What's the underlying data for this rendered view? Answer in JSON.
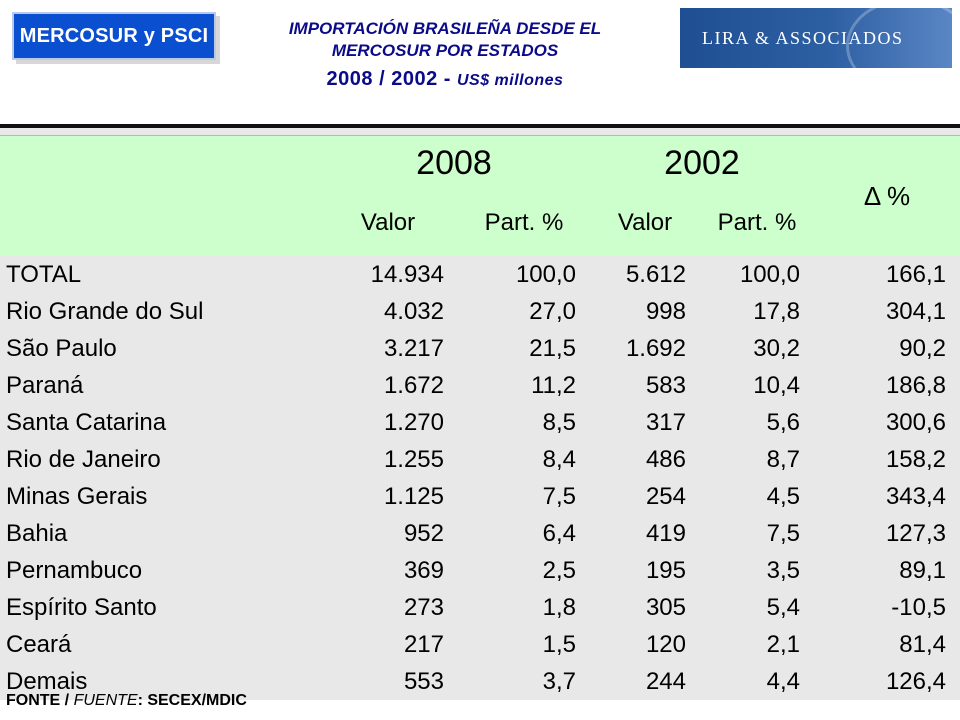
{
  "logo_left": {
    "text": "MERCOSUR y PSCI"
  },
  "logo_right": {
    "text": "LIRA & ASSOCIADOS"
  },
  "title": {
    "line1": "IMPORTACIÓN BRASILEÑA DESDE EL",
    "line2": "MERCOSUR POR ESTADOS",
    "years": "2008 / 2002 -",
    "unit": "US$ millones"
  },
  "table": {
    "year_a": "2008",
    "year_b": "2002",
    "delta": "Δ %",
    "col_valor": "Valor",
    "col_part": "Part. %",
    "rows": [
      {
        "state": "TOTAL",
        "v2008": "14.934",
        "p2008": "100,0",
        "v2002": "5.612",
        "p2002": "100,0",
        "delta": "166,1"
      },
      {
        "state": "Rio Grande do Sul",
        "v2008": "4.032",
        "p2008": "27,0",
        "v2002": "998",
        "p2002": "17,8",
        "delta": "304,1"
      },
      {
        "state": "São Paulo",
        "v2008": "3.217",
        "p2008": "21,5",
        "v2002": "1.692",
        "p2002": "30,2",
        "delta": "90,2"
      },
      {
        "state": "Paraná",
        "v2008": "1.672",
        "p2008": "11,2",
        "v2002": "583",
        "p2002": "10,4",
        "delta": "186,8"
      },
      {
        "state": "Santa Catarina",
        "v2008": "1.270",
        "p2008": "8,5",
        "v2002": "317",
        "p2002": "5,6",
        "delta": "300,6"
      },
      {
        "state": "Rio de Janeiro",
        "v2008": "1.255",
        "p2008": "8,4",
        "v2002": "486",
        "p2002": "8,7",
        "delta": "158,2"
      },
      {
        "state": "Minas Gerais",
        "v2008": "1.125",
        "p2008": "7,5",
        "v2002": "254",
        "p2002": "4,5",
        "delta": "343,4"
      },
      {
        "state": "Bahia",
        "v2008": "952",
        "p2008": "6,4",
        "v2002": "419",
        "p2002": "7,5",
        "delta": "127,3"
      },
      {
        "state": "Pernambuco",
        "v2008": "369",
        "p2008": "2,5",
        "v2002": "195",
        "p2002": "3,5",
        "delta": "89,1"
      },
      {
        "state": "Espírito Santo",
        "v2008": "273",
        "p2008": "1,8",
        "v2002": "305",
        "p2002": "5,4",
        "delta": "-10,5"
      },
      {
        "state": "Ceará",
        "v2008": "217",
        "p2008": "1,5",
        "v2002": "120",
        "p2002": "2,1",
        "delta": "81,4"
      },
      {
        "state": "Demais",
        "v2008": "553",
        "p2008": "3,7",
        "v2002": "244",
        "p2002": "4,4",
        "delta": "126,4"
      }
    ]
  },
  "source": {
    "fonte": "FONTE /",
    "fuente": "FUENTE",
    "rest": ": SECEX/MDIC"
  }
}
